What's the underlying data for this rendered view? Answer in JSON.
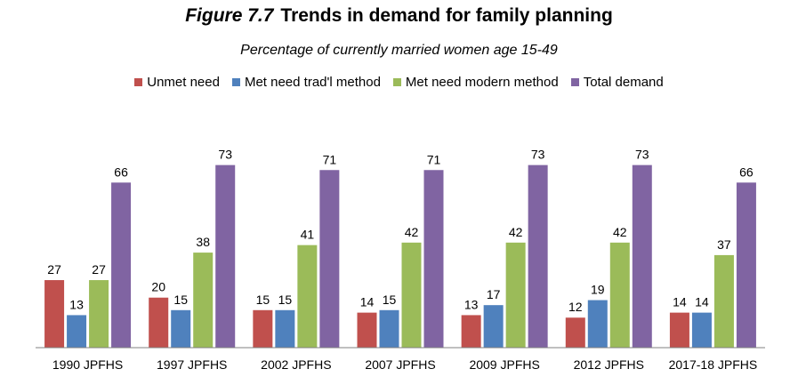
{
  "title_prefix": "Figure 7.7",
  "title_main": "Trends in demand for family planning",
  "subtitle": "Percentage of currently married women age 15-49",
  "chart_data": {
    "type": "bar",
    "title": "Figure 7.7 Trends in demand for family planning",
    "subtitle": "Percentage of currently married women age 15-49",
    "categories": [
      "1990 JPFHS",
      "1997 JPFHS",
      "2002 JPFHS",
      "2007 JPFHS",
      "2009 JPFHS",
      "2012 JPFHS",
      "2017-18 JPFHS"
    ],
    "series": [
      {
        "name": "Unmet need",
        "color": "#C0504D",
        "values": [
          27,
          20,
          15,
          14,
          13,
          12,
          14
        ]
      },
      {
        "name": "Met need trad'l method",
        "color": "#4F81BD",
        "values": [
          13,
          15,
          15,
          15,
          17,
          19,
          14
        ]
      },
      {
        "name": "Met need modern method",
        "color": "#9BBB59",
        "values": [
          27,
          38,
          41,
          42,
          42,
          42,
          37
        ]
      },
      {
        "name": "Total demand",
        "color": "#8064A2",
        "values": [
          66,
          73,
          71,
          71,
          73,
          73,
          66
        ]
      }
    ],
    "ylim": [
      0,
      75
    ],
    "xlabel": "",
    "ylabel": "",
    "legend_position": "top",
    "grid": false,
    "data_labels": true
  }
}
